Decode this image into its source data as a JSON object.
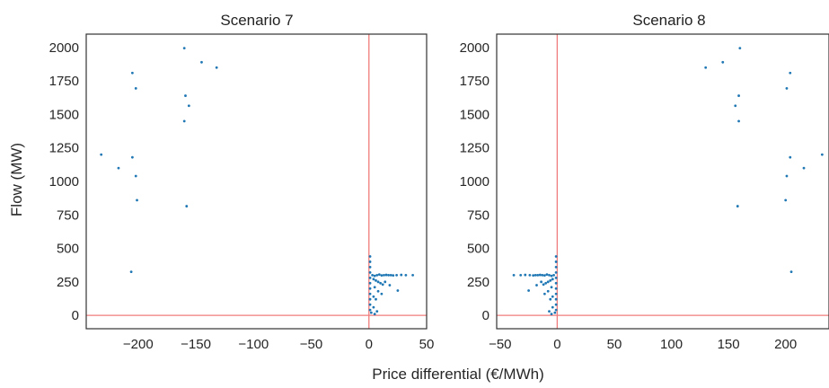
{
  "figure": {
    "ylabel": "Flow (MW)",
    "xlabel": "Price differential (€/MWh)",
    "reference_line_color": "#f07c7c",
    "marker_color": "#1f77b4"
  },
  "chart_data": [
    {
      "type": "scatter",
      "title": "Scenario 7",
      "xlim": [
        -245,
        50
      ],
      "ylim": [
        -100,
        2100
      ],
      "x_ticks": [
        -200,
        -150,
        -100,
        -50,
        0,
        50
      ],
      "y_ticks": [
        0,
        250,
        500,
        750,
        1000,
        1250,
        1500,
        1750,
        2000
      ],
      "reference_lines": {
        "x": 0,
        "y": 0
      },
      "grid": false,
      "points": [
        {
          "x": -160,
          "y": 1995
        },
        {
          "x": -145,
          "y": 1890
        },
        {
          "x": -132,
          "y": 1850
        },
        {
          "x": -205,
          "y": 1810
        },
        {
          "x": -202,
          "y": 1695
        },
        {
          "x": -159,
          "y": 1640
        },
        {
          "x": -156,
          "y": 1565
        },
        {
          "x": -160,
          "y": 1450
        },
        {
          "x": -232,
          "y": 1200
        },
        {
          "x": -205,
          "y": 1180
        },
        {
          "x": -217,
          "y": 1100
        },
        {
          "x": -202,
          "y": 1040
        },
        {
          "x": -201,
          "y": 860
        },
        {
          "x": -158,
          "y": 815
        },
        {
          "x": -206,
          "y": 325
        },
        {
          "x": 1,
          "y": 440
        },
        {
          "x": 1,
          "y": 400
        },
        {
          "x": 1,
          "y": 360
        },
        {
          "x": 1,
          "y": 320
        },
        {
          "x": 1,
          "y": 280
        },
        {
          "x": 1,
          "y": 240
        },
        {
          "x": 1,
          "y": 200
        },
        {
          "x": 1,
          "y": 160
        },
        {
          "x": 1,
          "y": 120
        },
        {
          "x": 1,
          "y": 80
        },
        {
          "x": 1,
          "y": 40
        },
        {
          "x": 2,
          "y": 20
        },
        {
          "x": 3,
          "y": 300
        },
        {
          "x": 5,
          "y": 295
        },
        {
          "x": 7,
          "y": 300
        },
        {
          "x": 9,
          "y": 305
        },
        {
          "x": 11,
          "y": 298
        },
        {
          "x": 13,
          "y": 300
        },
        {
          "x": 15,
          "y": 302
        },
        {
          "x": 17,
          "y": 300
        },
        {
          "x": 19,
          "y": 300
        },
        {
          "x": 21,
          "y": 298
        },
        {
          "x": 24,
          "y": 300
        },
        {
          "x": 28,
          "y": 302
        },
        {
          "x": 32,
          "y": 300
        },
        {
          "x": 38,
          "y": 300
        },
        {
          "x": 4,
          "y": 270
        },
        {
          "x": 6,
          "y": 260
        },
        {
          "x": 8,
          "y": 250
        },
        {
          "x": 10,
          "y": 240
        },
        {
          "x": 12,
          "y": 230
        },
        {
          "x": 14,
          "y": 250
        },
        {
          "x": 18,
          "y": 225
        },
        {
          "x": 25,
          "y": 185
        },
        {
          "x": 5,
          "y": 210
        },
        {
          "x": 8,
          "y": 180
        },
        {
          "x": 11,
          "y": 160
        },
        {
          "x": 4,
          "y": 140
        },
        {
          "x": 6,
          "y": 120
        },
        {
          "x": 4,
          "y": 60
        },
        {
          "x": 7,
          "y": 30
        },
        {
          "x": 5,
          "y": 10
        }
      ]
    },
    {
      "type": "scatter",
      "title": "Scenario 8",
      "xlim": [
        -53,
        238
      ],
      "ylim": [
        -100,
        2100
      ],
      "x_ticks": [
        -50,
        0,
        50,
        100,
        150,
        200
      ],
      "y_ticks": [
        0,
        250,
        500,
        750,
        1000,
        1250,
        1500,
        1750,
        2000
      ],
      "reference_lines": {
        "x": 0,
        "y": 0
      },
      "grid": false,
      "points": [
        {
          "x": 160,
          "y": 1995
        },
        {
          "x": 145,
          "y": 1890
        },
        {
          "x": 130,
          "y": 1850
        },
        {
          "x": 204,
          "y": 1810
        },
        {
          "x": 201,
          "y": 1695
        },
        {
          "x": 159,
          "y": 1640
        },
        {
          "x": 156,
          "y": 1565
        },
        {
          "x": 159,
          "y": 1450
        },
        {
          "x": 232,
          "y": 1200
        },
        {
          "x": 204,
          "y": 1180
        },
        {
          "x": 216,
          "y": 1100
        },
        {
          "x": 201,
          "y": 1040
        },
        {
          "x": 200,
          "y": 860
        },
        {
          "x": 158,
          "y": 815
        },
        {
          "x": 205,
          "y": 325
        },
        {
          "x": -1,
          "y": 440
        },
        {
          "x": -1,
          "y": 400
        },
        {
          "x": -1,
          "y": 360
        },
        {
          "x": -1,
          "y": 320
        },
        {
          "x": -1,
          "y": 280
        },
        {
          "x": -1,
          "y": 240
        },
        {
          "x": -1,
          "y": 200
        },
        {
          "x": -1,
          "y": 160
        },
        {
          "x": -1,
          "y": 120
        },
        {
          "x": -1,
          "y": 80
        },
        {
          "x": -1,
          "y": 40
        },
        {
          "x": -2,
          "y": 20
        },
        {
          "x": -3,
          "y": 300
        },
        {
          "x": -5,
          "y": 295
        },
        {
          "x": -7,
          "y": 300
        },
        {
          "x": -9,
          "y": 305
        },
        {
          "x": -11,
          "y": 298
        },
        {
          "x": -13,
          "y": 300
        },
        {
          "x": -15,
          "y": 302
        },
        {
          "x": -17,
          "y": 300
        },
        {
          "x": -19,
          "y": 300
        },
        {
          "x": -21,
          "y": 298
        },
        {
          "x": -24,
          "y": 300
        },
        {
          "x": -28,
          "y": 302
        },
        {
          "x": -32,
          "y": 300
        },
        {
          "x": -38,
          "y": 300
        },
        {
          "x": -4,
          "y": 270
        },
        {
          "x": -6,
          "y": 260
        },
        {
          "x": -8,
          "y": 250
        },
        {
          "x": -10,
          "y": 240
        },
        {
          "x": -12,
          "y": 230
        },
        {
          "x": -14,
          "y": 250
        },
        {
          "x": -18,
          "y": 225
        },
        {
          "x": -25,
          "y": 185
        },
        {
          "x": -5,
          "y": 210
        },
        {
          "x": -8,
          "y": 180
        },
        {
          "x": -11,
          "y": 160
        },
        {
          "x": -4,
          "y": 140
        },
        {
          "x": -6,
          "y": 120
        },
        {
          "x": -4,
          "y": 60
        },
        {
          "x": -7,
          "y": 30
        },
        {
          "x": -5,
          "y": 10
        }
      ]
    }
  ]
}
